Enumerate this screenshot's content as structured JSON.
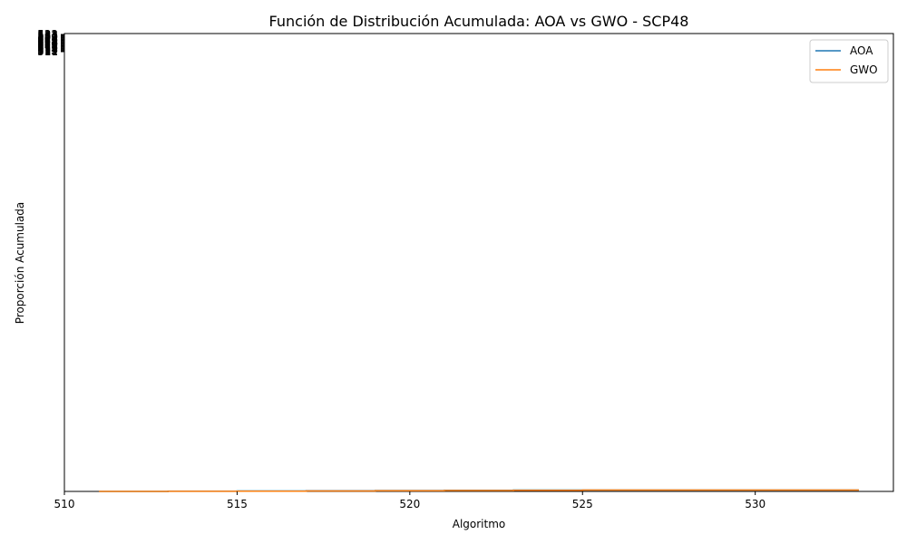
{
  "chart_data": {
    "type": "line",
    "title": "Función de Distribución Acumulada: AOA vs GWO - SCP48",
    "xlabel": "Algoritmo",
    "ylabel": "Proporción Acumulada",
    "xlim": [
      510,
      534
    ],
    "ylim": [
      0,
      1
    ],
    "x_ticks": [
      510,
      515,
      520,
      525,
      530
    ],
    "y_tick_labels": [
      "511",
      "512",
      "513",
      "514",
      "515",
      "516",
      "517",
      "518",
      "519",
      "520",
      "521",
      "522",
      "523",
      "524",
      "525",
      "526",
      "527",
      "528",
      "529",
      "530",
      "531",
      "532",
      "533"
    ],
    "grid": false,
    "legend_position": "top-right",
    "series": [
      {
        "name": "AOA",
        "color": "#1f77b4",
        "x": [
          511,
          513,
          515,
          517,
          519,
          521,
          523,
          525,
          527,
          529,
          531,
          533
        ],
        "y": [
          0.0,
          0.0005,
          0.001,
          0.0015,
          0.002,
          0.0025,
          0.003,
          0.003,
          0.003,
          0.003,
          0.003,
          0.003
        ]
      },
      {
        "name": "GWO",
        "color": "#ff7f0e",
        "x": [
          511,
          513,
          515,
          517,
          519,
          521,
          523,
          525,
          527,
          529,
          531,
          533
        ],
        "y": [
          0.0,
          0.0003,
          0.0006,
          0.001,
          0.0015,
          0.002,
          0.0025,
          0.003,
          0.003,
          0.003,
          0.003,
          0.003
        ]
      }
    ]
  }
}
